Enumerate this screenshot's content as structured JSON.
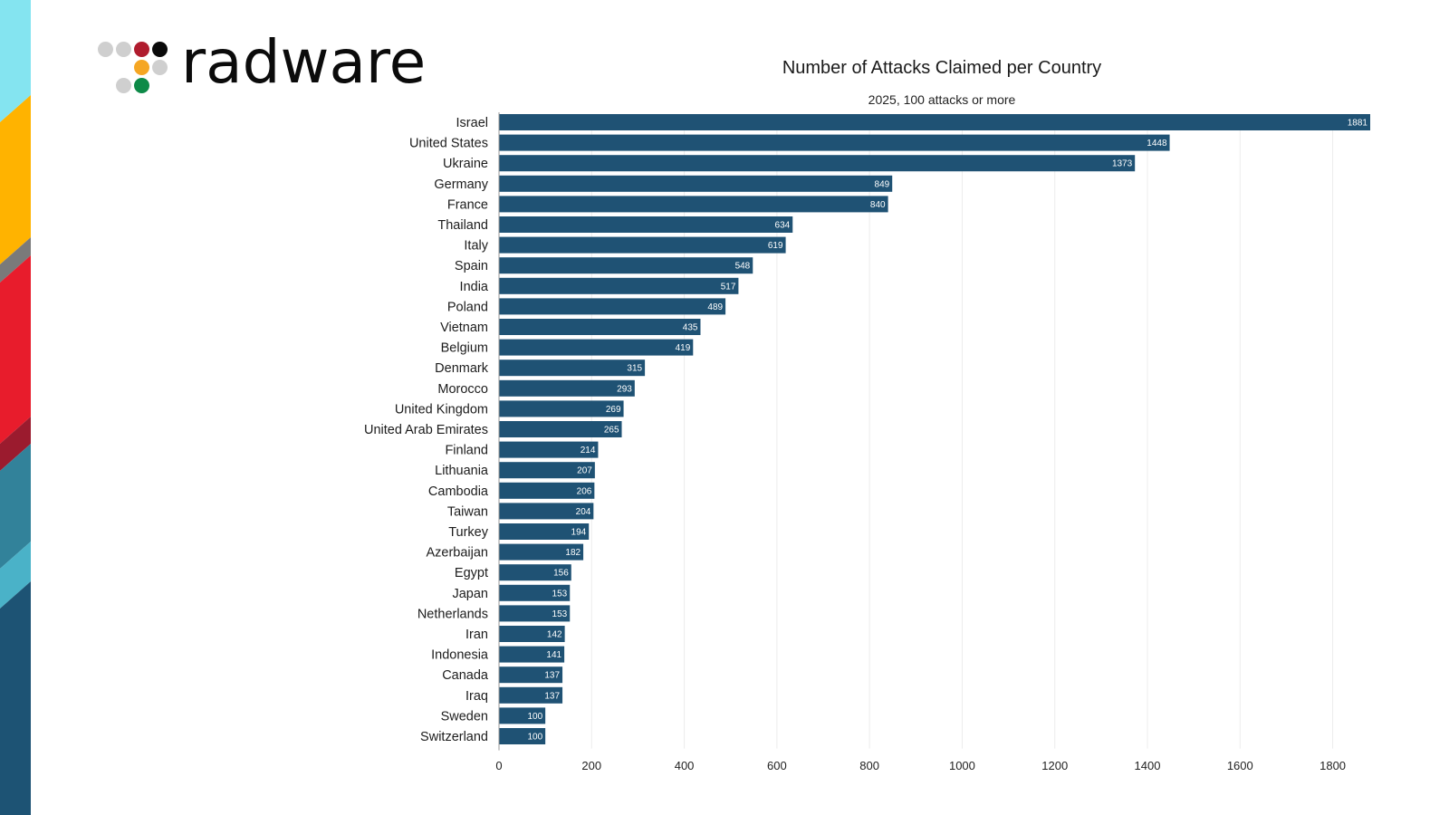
{
  "brand": {
    "logo_text": "radware",
    "dot_colors": [
      "#cfcfcf",
      "#cfcfcf",
      "#b01c2e",
      "#0a0a0a",
      "#f5a623",
      "#cfcfcf",
      "#cfcfcf",
      "#0e8a48"
    ],
    "stripe_colors": [
      "#84e4f0",
      "#ffb300",
      "#7a7a7a",
      "#e81c2c",
      "#9b1b2e",
      "#32829a",
      "#4ab2c8",
      "#1d5374"
    ]
  },
  "chart_data": {
    "type": "bar",
    "orientation": "horizontal",
    "title": "Number of Attacks Claimed per Country",
    "subtitle": "2025, 100 attacks or more",
    "xlabel": "",
    "ylabel": "",
    "xlim": [
      0,
      1881
    ],
    "xticks": [
      0,
      200,
      400,
      600,
      800,
      1000,
      1200,
      1400,
      1600,
      1800
    ],
    "xtick_labels": [
      "0",
      "200",
      "400",
      "600",
      "800",
      "1000",
      "1200",
      "1400",
      "1600",
      "1800"
    ],
    "grid": true,
    "bar_color": "#1f5274",
    "categories": [
      "Israel",
      "United States",
      "Ukraine",
      "Germany",
      "France",
      "Thailand",
      "Italy",
      "Spain",
      "India",
      "Poland",
      "Vietnam",
      "Belgium",
      "Denmark",
      "Morocco",
      "United Kingdom",
      "United Arab Emirates",
      "Finland",
      "Lithuania",
      "Cambodia",
      "Taiwan",
      "Turkey",
      "Azerbaijan",
      "Egypt",
      "Japan",
      "Netherlands",
      "Iran",
      "Indonesia",
      "Canada",
      "Iraq",
      "Sweden",
      "Switzerland"
    ],
    "values": [
      1881,
      1448,
      1373,
      849,
      840,
      634,
      619,
      548,
      517,
      489,
      435,
      419,
      315,
      293,
      269,
      265,
      214,
      207,
      206,
      204,
      194,
      182,
      156,
      153,
      153,
      142,
      141,
      137,
      137,
      100,
      100
    ],
    "value_labels": [
      "1881",
      "1448",
      "1373",
      "849",
      "840",
      "634",
      "619",
      "548",
      "517",
      "489",
      "435",
      "419",
      "315",
      "293",
      "269",
      "265",
      "214",
      "207",
      "206",
      "204",
      "194",
      "182",
      "156",
      "153",
      "153",
      "142",
      "141",
      "137",
      "137",
      "100",
      "100"
    ]
  }
}
